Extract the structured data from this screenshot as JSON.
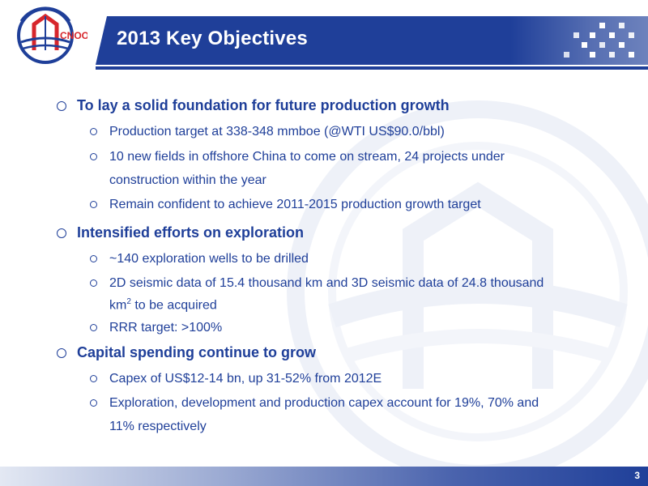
{
  "header": {
    "title": "2013 Key Objectives"
  },
  "sections": [
    {
      "heading": "To lay a solid foundation for future production growth",
      "items": [
        {
          "line1": "Production target at 338-348 mmboe (@WTI US$90.0/bbl)"
        },
        {
          "line1": "10 new fields in offshore China to come on stream, 24 projects under",
          "line2": "construction within the year"
        },
        {
          "line1": "Remain confident to achieve 2011-2015 production growth target"
        }
      ]
    },
    {
      "heading": "Intensified efforts on exploration",
      "items": [
        {
          "line1": "~140 exploration wells to be drilled"
        },
        {
          "line1": "2D seismic data of 15.4 thousand km and 3D seismic data of 24.8 thousand",
          "line2_a": "km",
          "line2_sup": "2",
          "line2_b": " to be acquired"
        },
        {
          "line1": "RRR target: >100%"
        }
      ]
    },
    {
      "heading": "Capital spending continue to grow",
      "items": [
        {
          "line1": "Capex of US$12-14 bn, up 31-52% from 2012E"
        },
        {
          "line1": "Exploration, development and production capex account for 19%, 70% and",
          "line2": "11% respectively"
        }
      ]
    }
  ],
  "footer": {
    "page_number": "3"
  },
  "logo": {
    "text": "CNOOC"
  },
  "colors": {
    "primary": "#1f3f99",
    "logo_red": "#d7262c"
  }
}
